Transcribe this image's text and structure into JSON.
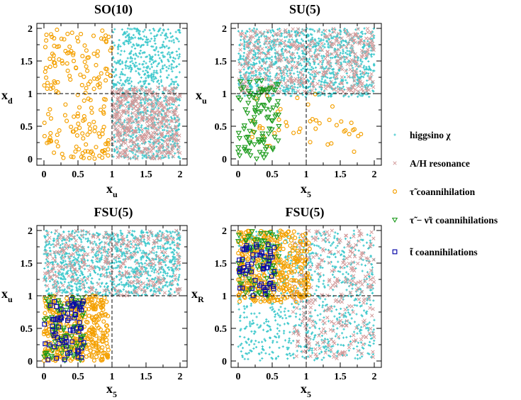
{
  "colors": {
    "higgsino": "#3cc8cc",
    "resonance": "#d29a9a",
    "stau": "#f4a000",
    "stau_sneutrino": "#1a9a1a",
    "stop": "#0a0aa8",
    "axes": "#000000"
  },
  "legend": {
    "higgsino": "higgsino χ",
    "resonance": "A/H  resonance",
    "stau": "τ̃  coannihilation",
    "stau_sneutrino": "τ̃ − ν̃τ coannihilations",
    "stop": "t̃  coannihilations"
  },
  "chart_data": [
    {
      "type": "scatter",
      "title": "SO(10)",
      "xlabel": "x",
      "xlabel_sub": "u",
      "ylabel": "x",
      "ylabel_sub": "d",
      "xlim": [
        0,
        2
      ],
      "ylim": [
        0,
        2
      ],
      "xticks": [
        "0",
        "0.5",
        "1",
        "1.5",
        "2"
      ],
      "yticks": [
        "0",
        "0.5",
        "1",
        "1.5",
        "2"
      ],
      "reference_lines": {
        "x": 1,
        "y": 1
      },
      "series": [
        {
          "name": "higgsino",
          "region": {
            "x": [
              1.0,
              2.0
            ],
            "y": [
              0.0,
              2.0
            ]
          },
          "count": 900
        },
        {
          "name": "resonance",
          "region": {
            "x": [
              1.0,
              2.0
            ],
            "y": [
              0.0,
              1.1
            ]
          },
          "count": 420
        },
        {
          "name": "stau",
          "region": {
            "x": [
              0.0,
              1.0
            ],
            "y": [
              0.0,
              2.0
            ]
          },
          "count": 190
        }
      ]
    },
    {
      "type": "scatter",
      "title": "SU(5)",
      "xlabel": "x",
      "xlabel_sub": "5",
      "ylabel": "x",
      "ylabel_sub": "u",
      "xlim": [
        0,
        2
      ],
      "ylim": [
        0,
        2
      ],
      "xticks": [
        "0",
        "0.5",
        "1",
        "1.5",
        "2"
      ],
      "yticks": [
        "0",
        "0.5",
        "1",
        "1.5",
        "2"
      ],
      "reference_lines": {
        "x": 1,
        "y": 1
      },
      "series": [
        {
          "name": "higgsino",
          "region": {
            "x": [
              0.0,
              2.0
            ],
            "y": [
              0.95,
              2.0
            ]
          },
          "count": 1100
        },
        {
          "name": "resonance",
          "region": {
            "x": [
              0.0,
              2.0
            ],
            "y": [
              1.0,
              2.0
            ]
          },
          "count": 400
        },
        {
          "name": "stau",
          "region": {
            "x": [
              0.2,
              1.9
            ],
            "y": [
              0.1,
              1.0
            ]
          },
          "count": 45
        },
        {
          "name": "stau_sneutrino",
          "region": {
            "x": [
              0.0,
              0.6
            ],
            "y": [
              0.0,
              1.2
            ]
          },
          "count": 100
        }
      ]
    },
    {
      "type": "scatter",
      "title": "FSU(5)",
      "xlabel": "x",
      "xlabel_sub": "5",
      "ylabel": "x",
      "ylabel_sub": "u",
      "xlim": [
        0,
        2
      ],
      "ylim": [
        0,
        2
      ],
      "xticks": [
        "0",
        "0.5",
        "1",
        "1.5",
        "2"
      ],
      "yticks": [
        "0",
        "0.5",
        "1",
        "1.5",
        "2"
      ],
      "reference_lines": {
        "x": 1,
        "y": 1
      },
      "series": [
        {
          "name": "higgsino",
          "region": {
            "x": [
              0.0,
              2.0
            ],
            "y": [
              1.0,
              2.0
            ]
          },
          "count": 1100
        },
        {
          "name": "resonance",
          "region": {
            "x": [
              0.0,
              2.0
            ],
            "y": [
              1.0,
              2.0
            ]
          },
          "count": 300
        },
        {
          "name": "stau",
          "region": {
            "x": [
              0.0,
              0.95
            ],
            "y": [
              0.0,
              1.0
            ]
          },
          "count": 380
        },
        {
          "name": "stau_sneutrino",
          "region": {
            "x": [
              0.0,
              0.6
            ],
            "y": [
              0.0,
              1.0
            ]
          },
          "count": 80
        },
        {
          "name": "stop",
          "region": {
            "x": [
              0.0,
              0.6
            ],
            "y": [
              0.0,
              0.95
            ]
          },
          "count": 70
        }
      ]
    },
    {
      "type": "scatter",
      "title": "FSU(5)",
      "xlabel": "x",
      "xlabel_sub": "5",
      "ylabel": "x",
      "ylabel_sub": "R",
      "xlim": [
        0,
        2
      ],
      "ylim": [
        0,
        2
      ],
      "xticks": [
        "0",
        "0.5",
        "1",
        "1.5",
        "2"
      ],
      "yticks": [
        "0",
        "0.5",
        "1",
        "1.5",
        "2"
      ],
      "reference_lines": {
        "x": 1,
        "y": 1
      },
      "series": [
        {
          "name": "higgsino",
          "region": {
            "x": [
              0.0,
              2.0
            ],
            "y": [
              0.0,
              2.0
            ]
          },
          "count": 900
        },
        {
          "name": "resonance",
          "region": {
            "x": [
              0.8,
              2.0
            ],
            "y": [
              0.0,
              2.0
            ]
          },
          "count": 280
        },
        {
          "name": "stau",
          "region": {
            "x": [
              0.0,
              1.05
            ],
            "y": [
              0.9,
              2.0
            ]
          },
          "count": 400
        },
        {
          "name": "stau_sneutrino",
          "region": {
            "x": [
              0.0,
              0.6
            ],
            "y": [
              1.0,
              2.0
            ]
          },
          "count": 70
        },
        {
          "name": "stop",
          "region": {
            "x": [
              0.0,
              0.55
            ],
            "y": [
              1.0,
              1.8
            ]
          },
          "count": 60
        }
      ]
    }
  ]
}
